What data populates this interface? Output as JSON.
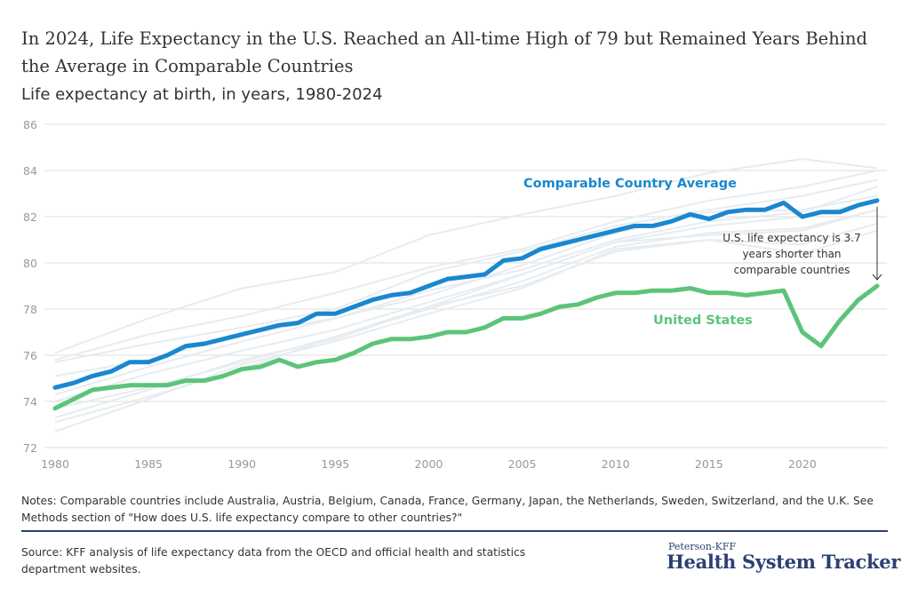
{
  "title": "In 2024, Life Expectancy in the U.S. Reached an All-time High of 79 but Remained Years Behind the Average in Comparable Countries",
  "subtitle": "Life expectancy at birth, in years, 1980-2024",
  "notes": "Notes: Comparable countries include Australia, Austria, Belgium, Canada, France, Germany, Japan, the Netherlands, Sweden, Switzerland, and the U.K. See Methods section of \"How does U.S. life expectancy compare to other countries?\"",
  "source": "Source: KFF analysis of life expectancy data from the OECD and official health and statistics department websites.",
  "logo": {
    "small": "Peterson-KFF",
    "big": "Health System Tracker"
  },
  "chart_data": {
    "type": "line",
    "title": "",
    "xlabel": "",
    "ylabel": "",
    "xlim": [
      1980,
      2024
    ],
    "ylim": [
      72,
      86
    ],
    "grid": true,
    "yticks": [
      72,
      74,
      76,
      78,
      80,
      82,
      84,
      86
    ],
    "xticks": [
      1980,
      1985,
      1990,
      1995,
      2000,
      2005,
      2010,
      2015,
      2020
    ],
    "x": [
      1980,
      1981,
      1982,
      1983,
      1984,
      1985,
      1986,
      1987,
      1988,
      1989,
      1990,
      1991,
      1992,
      1993,
      1994,
      1995,
      1996,
      1997,
      1998,
      1999,
      2000,
      2001,
      2002,
      2003,
      2004,
      2005,
      2006,
      2007,
      2008,
      2009,
      2010,
      2011,
      2012,
      2013,
      2014,
      2015,
      2016,
      2017,
      2018,
      2019,
      2020,
      2021,
      2022,
      2023,
      2024
    ],
    "series": [
      {
        "name": "Comparable Country Average",
        "color": "#1a87cf",
        "values": [
          74.6,
          74.8,
          75.1,
          75.3,
          75.7,
          75.7,
          76.0,
          76.4,
          76.5,
          76.7,
          76.9,
          77.1,
          77.3,
          77.4,
          77.8,
          77.8,
          78.1,
          78.4,
          78.6,
          78.7,
          79.0,
          79.3,
          79.4,
          79.5,
          80.1,
          80.2,
          80.6,
          80.8,
          81.0,
          81.2,
          81.4,
          81.6,
          81.6,
          81.8,
          82.1,
          81.9,
          82.2,
          82.3,
          82.3,
          82.6,
          82.0,
          82.2,
          82.2,
          82.5,
          82.7
        ]
      },
      {
        "name": "United States",
        "color": "#5cc47a",
        "values": [
          73.7,
          74.1,
          74.5,
          74.6,
          74.7,
          74.7,
          74.7,
          74.9,
          74.9,
          75.1,
          75.4,
          75.5,
          75.8,
          75.5,
          75.7,
          75.8,
          76.1,
          76.5,
          76.7,
          76.7,
          76.8,
          77.0,
          77.0,
          77.2,
          77.6,
          77.6,
          77.8,
          78.1,
          78.2,
          78.5,
          78.7,
          78.7,
          78.8,
          78.8,
          78.9,
          78.7,
          78.7,
          78.6,
          78.7,
          78.8,
          77.0,
          76.4,
          77.5,
          78.4,
          79.0
        ]
      }
    ],
    "background_series": {
      "color": "#e6ecf0",
      "x": [
        1980,
        1985,
        1990,
        1995,
        2000,
        2005,
        2010,
        2015,
        2020,
        2024
      ],
      "values": [
        [
          76.1,
          77.6,
          78.9,
          79.6,
          81.2,
          82.1,
          82.9,
          83.9,
          84.5,
          84.1
        ],
        [
          75.8,
          76.9,
          77.7,
          78.7,
          79.8,
          80.6,
          81.8,
          82.7,
          83.3,
          84.0
        ],
        [
          75.7,
          76.5,
          77.2,
          78.0,
          79.6,
          80.5,
          81.6,
          82.3,
          82.9,
          83.6
        ],
        [
          75.1,
          75.8,
          76.9,
          77.6,
          78.8,
          79.7,
          81.0,
          81.8,
          82.2,
          83.3
        ],
        [
          74.3,
          75.5,
          76.6,
          77.6,
          78.6,
          79.9,
          81.3,
          82.2,
          82.3,
          82.9
        ],
        [
          73.7,
          74.6,
          75.7,
          76.8,
          78.0,
          79.2,
          80.7,
          81.3,
          81.5,
          82.3
        ],
        [
          73.3,
          74.5,
          75.8,
          76.7,
          78.1,
          79.5,
          80.9,
          81.2,
          81.4,
          82.3
        ],
        [
          73.1,
          74.2,
          75.4,
          76.8,
          78.1,
          79.0,
          80.5,
          81.0,
          80.8,
          81.7
        ],
        [
          72.7,
          74.1,
          75.6,
          76.6,
          77.8,
          78.9,
          80.6,
          81.0,
          80.4,
          81.4
        ],
        [
          74.0,
          75.2,
          76.2,
          77.1,
          78.3,
          79.5,
          80.9,
          81.6,
          82.0,
          82.7
        ]
      ]
    },
    "annotations": [
      {
        "text_lines": [
          "U.S. life expectancy is 3.7",
          "years shorter than",
          "comparable countries"
        ],
        "gap": 3.7,
        "x": 2024
      }
    ]
  }
}
